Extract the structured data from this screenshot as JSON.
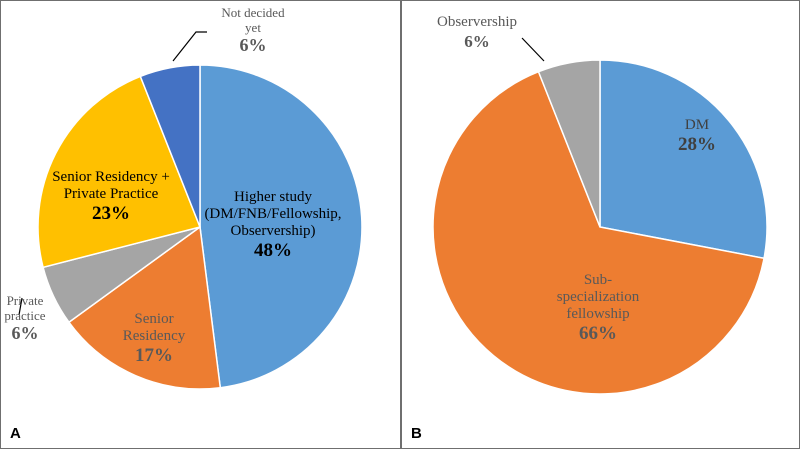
{
  "panels": [
    "A",
    "B"
  ],
  "chart_data": [
    {
      "type": "pie",
      "panel": "A",
      "slices": [
        {
          "label": [
            "Higher study",
            "(DM/FNB/Fellowship,",
            "Observership)"
          ],
          "value": 48,
          "pct_label": "48%",
          "color": "#5b9bd5"
        },
        {
          "label": [
            "Senior",
            "Residency"
          ],
          "value": 17,
          "pct_label": "17%",
          "color": "#ed7d31"
        },
        {
          "label": [
            "Private",
            "practice"
          ],
          "value": 6,
          "pct_label": "6%",
          "color": "#a5a5a5"
        },
        {
          "label": [
            "Senior Residency +",
            "Private Practice"
          ],
          "value": 23,
          "pct_label": "23%",
          "color": "#ffc000"
        },
        {
          "label": [
            "Not decided",
            "yet"
          ],
          "value": 6,
          "pct_label": "6%",
          "color": "#4472c4"
        }
      ]
    },
    {
      "type": "pie",
      "panel": "B",
      "slices": [
        {
          "label": [
            "DM"
          ],
          "value": 28,
          "pct_label": "28%",
          "color": "#5b9bd5"
        },
        {
          "label": [
            "Sub-",
            "specialization",
            "fellowship"
          ],
          "value": 66,
          "pct_label": "66%",
          "color": "#ed7d31"
        },
        {
          "label": [
            "Observership"
          ],
          "value": 6,
          "pct_label": "6%",
          "color": "#a5a5a5"
        }
      ]
    }
  ]
}
